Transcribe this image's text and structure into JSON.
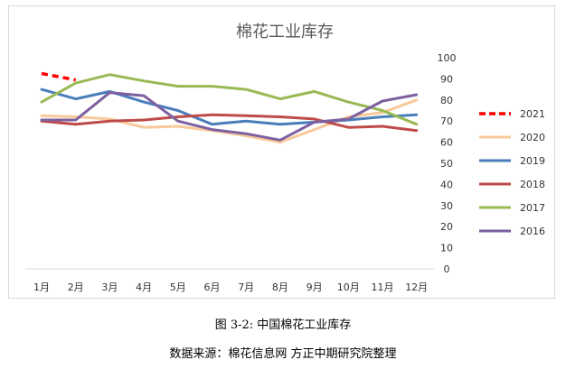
{
  "chart_data": {
    "type": "line",
    "title": "棉花工业库存",
    "categories": [
      "1月",
      "2月",
      "3月",
      "4月",
      "5月",
      "6月",
      "7月",
      "8月",
      "9月",
      "10月",
      "11月",
      "12月"
    ],
    "ylim": [
      0,
      100
    ],
    "yticks": [
      0,
      10,
      20,
      30,
      40,
      50,
      60,
      70,
      80,
      90,
      100
    ],
    "grid": false,
    "legend_position": "right",
    "series": [
      {
        "name": "2021",
        "color": "#ff0000",
        "dashed": true,
        "values": [
          92.5,
          89.5,
          null,
          null,
          null,
          null,
          null,
          null,
          null,
          null,
          null,
          null
        ]
      },
      {
        "name": "2020",
        "color": "#f8c99a",
        "dashed": false,
        "values": [
          72.5,
          72,
          71,
          67,
          67.5,
          65.5,
          63,
          60,
          66,
          72,
          74,
          80
        ]
      },
      {
        "name": "2019",
        "color": "#4a7ebb",
        "dashed": false,
        "values": [
          85,
          80.5,
          84,
          79,
          75,
          68.5,
          70,
          68.5,
          69.5,
          70.5,
          72,
          73
        ]
      },
      {
        "name": "2018",
        "color": "#be4b48",
        "dashed": false,
        "values": [
          70,
          68.5,
          70,
          70.5,
          72,
          73,
          72.5,
          72,
          71,
          67,
          67.5,
          65.5
        ]
      },
      {
        "name": "2017",
        "color": "#98b954",
        "dashed": false,
        "values": [
          79,
          88,
          92,
          89,
          86.5,
          86.5,
          85,
          80.5,
          84,
          79,
          75,
          68.5
        ]
      },
      {
        "name": "2016",
        "color": "#7d60a0",
        "dashed": false,
        "values": [
          70.5,
          70.5,
          83.5,
          82,
          70,
          66,
          64,
          61,
          69.5,
          71,
          79.5,
          82.5
        ]
      }
    ]
  },
  "captions": {
    "figure": "图 3-2:  中国棉花工业库存",
    "source": "数据来源：棉花信息网    方正中期研究院整理"
  }
}
